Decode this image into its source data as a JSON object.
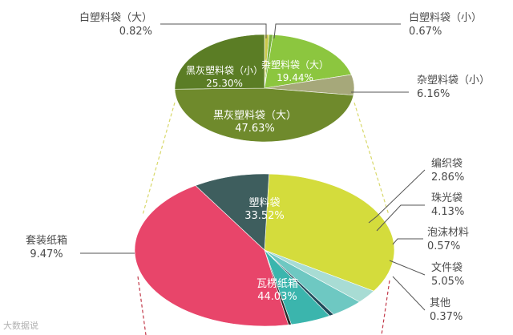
{
  "chart_data": [
    {
      "type": "pie",
      "name": "top",
      "slices": [
        {
          "label": "白塑料袋（大）",
          "value": 0.82,
          "value_text": "0.82%",
          "color": "#c9c84a",
          "label_pos": "outside"
        },
        {
          "label": "白塑料袋（小）",
          "value": 0.67,
          "value_text": "0.67%",
          "color": "#78b23c",
          "label_pos": "outside"
        },
        {
          "label": "杂塑料袋（大）",
          "value": 19.44,
          "value_text": "19.44%",
          "color": "#8cc63f",
          "label_pos": "inside"
        },
        {
          "label": "杂塑料袋（小）",
          "value": 6.16,
          "value_text": "6.16%",
          "color": "#a6a87a",
          "label_pos": "outside"
        },
        {
          "label": "黑灰塑料袋（大）",
          "value": 47.63,
          "value_text": "47.63%",
          "color": "#6f8a2c",
          "label_pos": "inside"
        },
        {
          "label": "黑灰塑料袋（小）",
          "value": 25.3,
          "value_text": "25.30%",
          "color": "#5b7d25",
          "label_pos": "inside"
        }
      ]
    },
    {
      "type": "pie",
      "name": "bottom",
      "slices": [
        {
          "label": "塑料袋",
          "value": 33.52,
          "value_text": "33.52%",
          "color": "#d4dc3c",
          "label_pos": "inside"
        },
        {
          "label": "编织袋",
          "value": 2.86,
          "value_text": "2.86%",
          "color": "#a8dcd4",
          "label_pos": "outside"
        },
        {
          "label": "珠光袋",
          "value": 4.13,
          "value_text": "4.13%",
          "color": "#6ec8c2",
          "label_pos": "outside"
        },
        {
          "label": "泡沫材料",
          "value": 0.57,
          "value_text": "0.57%",
          "color": "#1f4a5a",
          "label_pos": "outside"
        },
        {
          "label": "文件袋",
          "value": 5.05,
          "value_text": "5.05%",
          "color": "#3bb5ad",
          "label_pos": "outside"
        },
        {
          "label": "其他",
          "value": 0.37,
          "value_text": "0.37%",
          "color": "#2a2a2a",
          "label_pos": "outside"
        },
        {
          "label": "瓦楞纸箱",
          "value": 44.03,
          "value_text": "44.03%",
          "color": "#e8456a",
          "label_pos": "inside"
        },
        {
          "label": "套装纸箱",
          "value": 9.47,
          "value_text": "9.47%",
          "color": "#3e5e5e",
          "label_pos": "outside"
        }
      ]
    }
  ],
  "watermark": "大数据说"
}
